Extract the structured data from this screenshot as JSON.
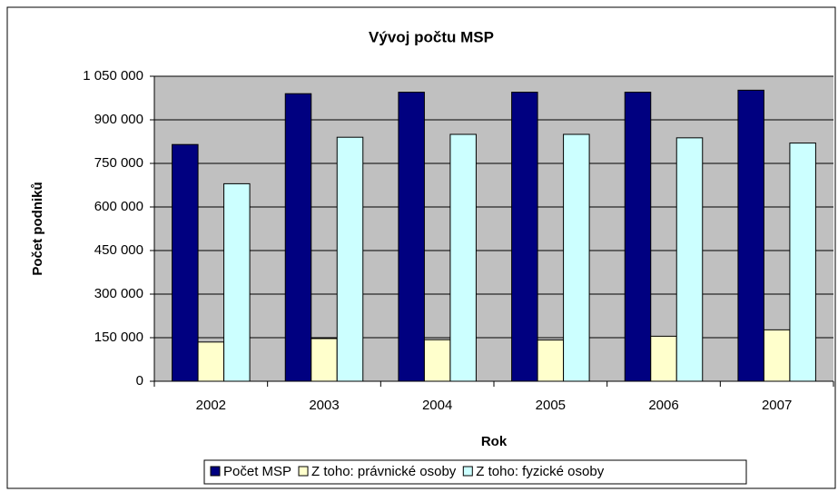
{
  "chart_data": {
    "type": "bar",
    "title": "Vývoj počtu MSP",
    "x_label": "Rok",
    "y_label": "Počet podniků",
    "categories": [
      "2002",
      "2003",
      "2004",
      "2005",
      "2006",
      "2007"
    ],
    "series": [
      {
        "name": "Počet MSP",
        "color": "#000080",
        "values": [
          815000,
          990000,
          995000,
          995000,
          995000,
          1002000
        ]
      },
      {
        "name": "Z toho: právnické osoby",
        "color": "#ffffcc",
        "values": [
          135000,
          147000,
          143000,
          142000,
          155000,
          177000
        ]
      },
      {
        "name": "Z toho: fyzické osoby",
        "color": "#ccffff",
        "values": [
          680000,
          840000,
          850000,
          850000,
          838000,
          820000
        ]
      }
    ],
    "ylim": [
      0,
      1050000
    ],
    "yticks": [
      0,
      {
        "value": 150000,
        "label": "150 000"
      },
      {
        "value": 300000,
        "label": "300 000"
      },
      {
        "value": 450000,
        "label": "450 000"
      },
      {
        "value": 600000,
        "label": "600 000"
      },
      {
        "value": 750000,
        "label": "750 000"
      },
      {
        "value": 900000,
        "label": "900 000"
      },
      {
        "value": 1050000,
        "label": "1 050 000"
      }
    ],
    "grid": true,
    "legend": "bottom"
  }
}
